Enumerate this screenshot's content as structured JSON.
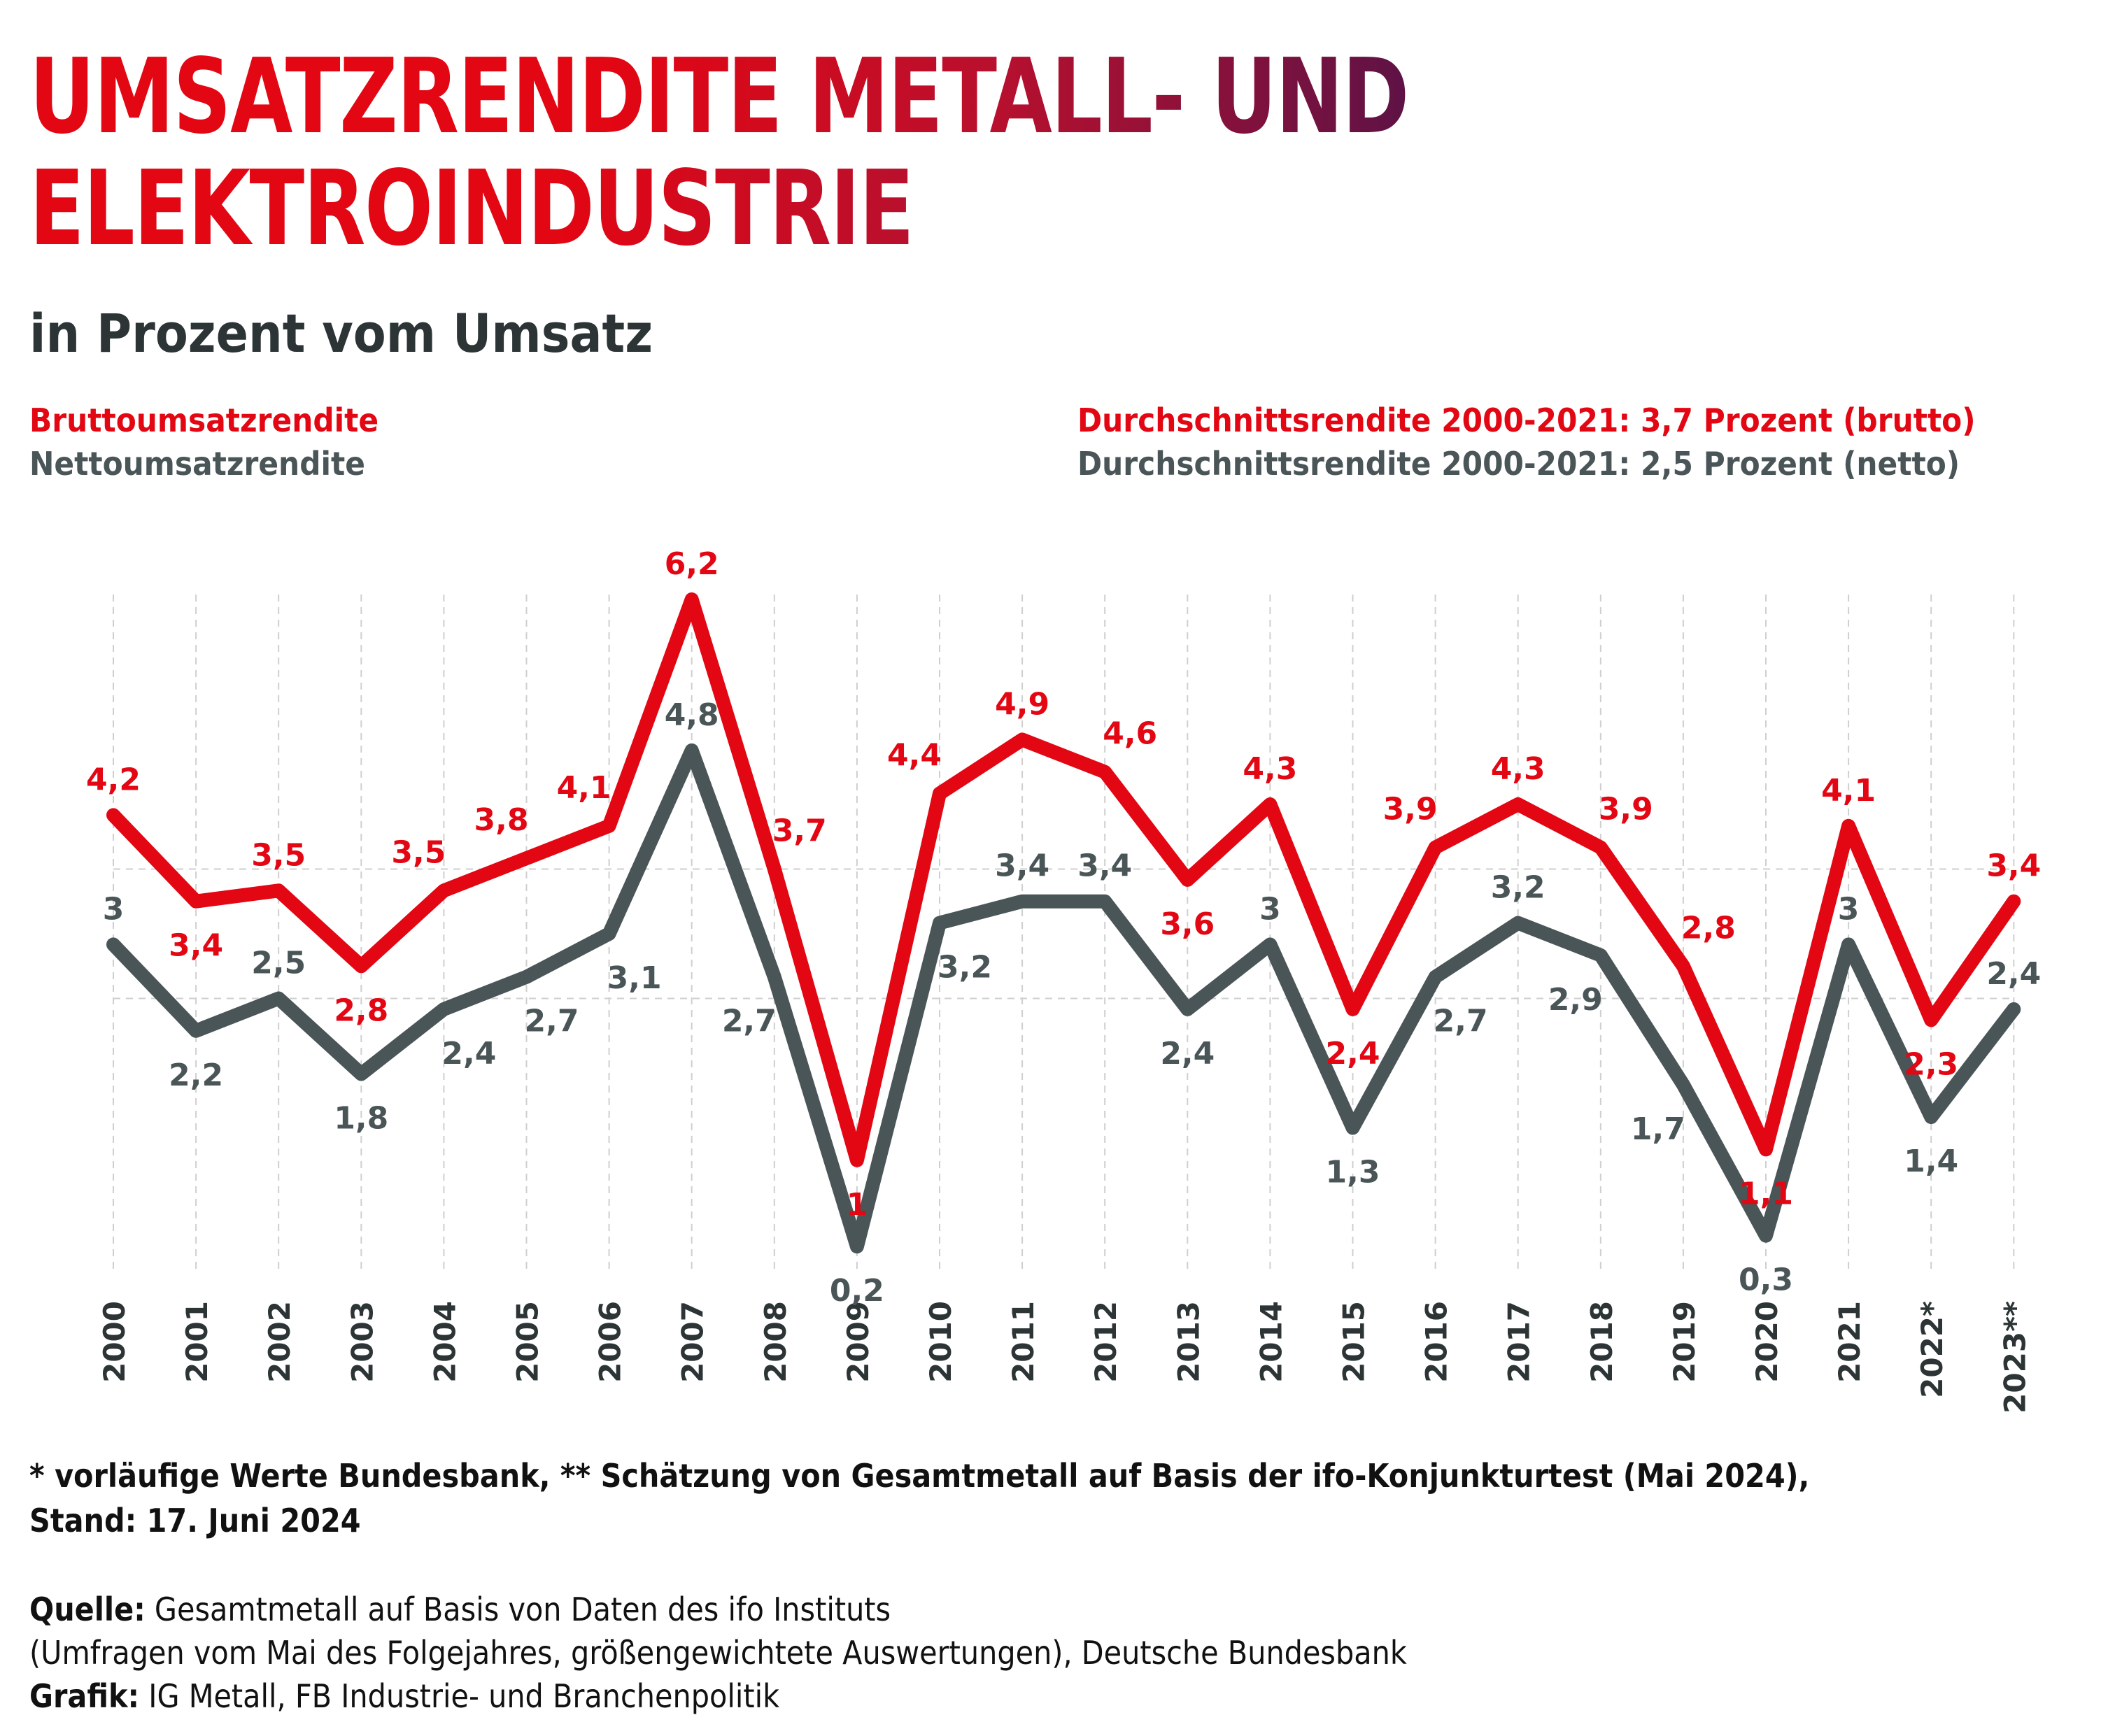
{
  "header": {
    "title_part1": "UMSATZRENDITE METALL- UND",
    "title_part2": "ELEKTROINDUSTRIE",
    "subtitle": "in Prozent vom Umsatz"
  },
  "legend": {
    "brutto_label": "Bruttoumsatzrendite",
    "netto_label": "Nettoumsatzrendite",
    "avg_brutto": "Durchschnittsrendite 2000-2021: 3,7 Prozent (brutto)",
    "avg_netto": "Durchschnittsrendite 2000-2021: 2,5 Prozent (netto)"
  },
  "colors": {
    "brutto": "#e30613",
    "netto": "#4a5557",
    "title_start": "#e30613",
    "title_end": "#5e1246",
    "grid": "#cfcfcf"
  },
  "chart_data": {
    "type": "line",
    "categories": [
      "2000",
      "2001",
      "2002",
      "2003",
      "2004",
      "2005",
      "2006",
      "2007",
      "2008",
      "2009",
      "2010",
      "2011",
      "2012",
      "2013",
      "2014",
      "2015",
      "2016",
      "2017",
      "2018",
      "2019",
      "2020",
      "2021",
      "2022*",
      "2023**"
    ],
    "series": [
      {
        "name": "Bruttoumsatzrendite",
        "values": [
          4.2,
          3.4,
          3.5,
          2.8,
          3.5,
          3.8,
          4.1,
          6.2,
          3.7,
          1,
          4.4,
          4.9,
          4.6,
          3.6,
          4.3,
          2.4,
          3.9,
          4.3,
          3.9,
          2.8,
          1.1,
          4.1,
          2.3,
          3.4
        ],
        "labels": [
          "4,2",
          "3,4",
          "3,5",
          "2,8",
          "3,5",
          "3,8",
          "4,1",
          "6,2",
          "3,7",
          "1",
          "4,4",
          "4,9",
          "4,6",
          "3,6",
          "4,3",
          "2,4",
          "3,9",
          "4,3",
          "3,9",
          "2,8",
          "1,1",
          "4,1",
          "2,3",
          "3,4"
        ]
      },
      {
        "name": "Nettoumsatzrendite",
        "values": [
          3,
          2.2,
          2.5,
          1.8,
          2.4,
          2.7,
          3.1,
          4.8,
          2.7,
          0.2,
          3.2,
          3.4,
          3.4,
          2.4,
          3,
          1.3,
          2.7,
          3.2,
          2.9,
          1.7,
          0.3,
          3,
          1.4,
          2.4
        ],
        "labels": [
          "3",
          "2,2",
          "2,5",
          "1,8",
          "2,4",
          "2,7",
          "3,1",
          "4,8",
          "2,7",
          "0,2",
          "3,2",
          "3,4",
          "3,4",
          "2,4",
          "3",
          "1,3",
          "2,7",
          "3,2",
          "2,9",
          "1,7",
          "0,3",
          "3",
          "1,4",
          "2,4"
        ]
      }
    ],
    "reference_lines": [
      3.7,
      2.5
    ],
    "ylim": [
      0,
      6.5
    ],
    "grid": "vertical dashed",
    "legend_position": "top"
  },
  "footer": {
    "footnote_line1": "* vorläufige Werte Bundesbank, ** Schätzung von Gesamtmetall auf Basis der ifo-Konjunkturtest (Mai 2024),",
    "footnote_line2": "Stand: 17. Juni 2024",
    "source_label": "Quelle:",
    "source_text": " Gesamtmetall auf Basis von Daten des ifo Instituts",
    "source_text2": "(Umfragen vom Mai des Folgejahres, größengewichtete Auswertungen), Deutsche Bundesbank",
    "graphic_label": "Grafik:",
    "graphic_text": " IG Metall, FB Industrie- und Branchenpolitik"
  }
}
